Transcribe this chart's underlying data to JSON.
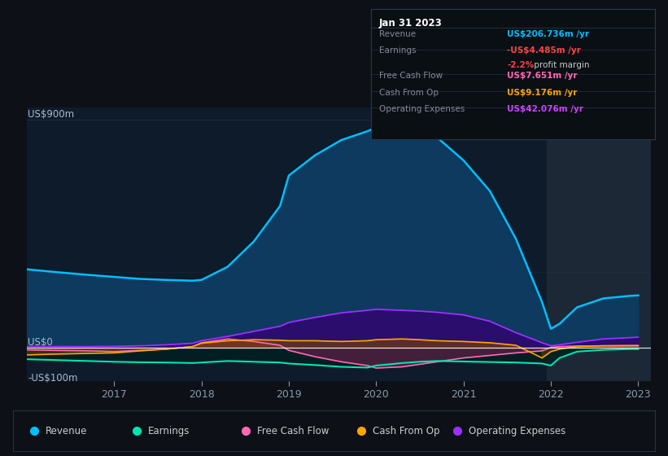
{
  "bg_color": "#0d1117",
  "chart_bg": "#0d1b2a",
  "x_years": [
    2016.0,
    2016.3,
    2016.7,
    2017.0,
    2017.3,
    2017.6,
    2017.9,
    2018.0,
    2018.3,
    2018.6,
    2018.9,
    2019.0,
    2019.3,
    2019.6,
    2019.9,
    2020.0,
    2020.3,
    2020.5,
    2020.7,
    2021.0,
    2021.3,
    2021.6,
    2021.9,
    2022.0,
    2022.1,
    2022.3,
    2022.6,
    2022.9,
    2023.0
  ],
  "revenue": [
    310,
    300,
    288,
    280,
    272,
    268,
    265,
    268,
    320,
    420,
    560,
    680,
    760,
    820,
    855,
    870,
    865,
    850,
    830,
    740,
    620,
    430,
    180,
    75,
    95,
    160,
    195,
    205,
    207
  ],
  "earnings": [
    -45,
    -48,
    -52,
    -55,
    -57,
    -58,
    -60,
    -58,
    -52,
    -55,
    -58,
    -62,
    -68,
    -75,
    -78,
    -70,
    -60,
    -55,
    -52,
    -54,
    -56,
    -58,
    -62,
    -70,
    -40,
    -15,
    -8,
    -5,
    -5
  ],
  "free_cash_flow": [
    -8,
    -10,
    -12,
    -15,
    -10,
    -5,
    5,
    20,
    35,
    25,
    10,
    -10,
    -35,
    -55,
    -70,
    -80,
    -75,
    -65,
    -55,
    -40,
    -30,
    -20,
    -12,
    2,
    5,
    7,
    8,
    8,
    8
  ],
  "cash_from_op": [
    -28,
    -25,
    -22,
    -20,
    -12,
    -5,
    5,
    18,
    28,
    32,
    30,
    28,
    28,
    25,
    28,
    32,
    35,
    32,
    28,
    25,
    20,
    10,
    -40,
    -15,
    -5,
    5,
    8,
    9,
    9
  ],
  "operating_expenses": [
    5,
    5,
    5,
    6,
    8,
    12,
    18,
    28,
    45,
    65,
    85,
    100,
    120,
    138,
    148,
    152,
    148,
    145,
    140,
    130,
    105,
    60,
    20,
    8,
    12,
    22,
    35,
    40,
    42
  ],
  "revenue_color": "#00bfff",
  "earnings_color": "#00e5b0",
  "fcf_color": "#ff69b4",
  "cfo_color": "#ffa500",
  "opex_color": "#9b30ff",
  "highlight_start": 2021.95,
  "highlight_end": 2023.15,
  "x_tick_labels": [
    "2017",
    "2018",
    "2019",
    "2020",
    "2021",
    "2022",
    "2023"
  ],
  "x_tick_positions": [
    2017,
    2018,
    2019,
    2020,
    2021,
    2022,
    2023
  ],
  "ylim": [
    -130,
    950
  ],
  "xlim": [
    2016.0,
    2023.15
  ],
  "ylabel_top": "US$900m",
  "ylabel_zero": "US$0",
  "ylabel_neg": "-US$100m",
  "tooltip": {
    "date": "Jan 31 2023",
    "rows": [
      {
        "label": "Revenue",
        "value": "US$206.736m /yr",
        "color": "#00bfff",
        "sub": null
      },
      {
        "label": "Earnings",
        "value": "-US$4.485m /yr",
        "color": "#ff4444",
        "sub": "-2.2% profit margin",
        "sub_color": "#ff4444"
      },
      {
        "label": "Free Cash Flow",
        "value": "US$7.651m /yr",
        "color": "#ff69b4",
        "sub": null
      },
      {
        "label": "Cash From Op",
        "value": "US$9.176m /yr",
        "color": "#ffa500",
        "sub": null
      },
      {
        "label": "Operating Expenses",
        "value": "US$42.076m /yr",
        "color": "#cc44ff",
        "sub": null
      }
    ]
  },
  "legend": [
    {
      "label": "Revenue",
      "color": "#00bfff"
    },
    {
      "label": "Earnings",
      "color": "#00e5b0"
    },
    {
      "label": "Free Cash Flow",
      "color": "#ff69b4"
    },
    {
      "label": "Cash From Op",
      "color": "#ffa500"
    },
    {
      "label": "Operating Expenses",
      "color": "#9b30ff"
    }
  ]
}
